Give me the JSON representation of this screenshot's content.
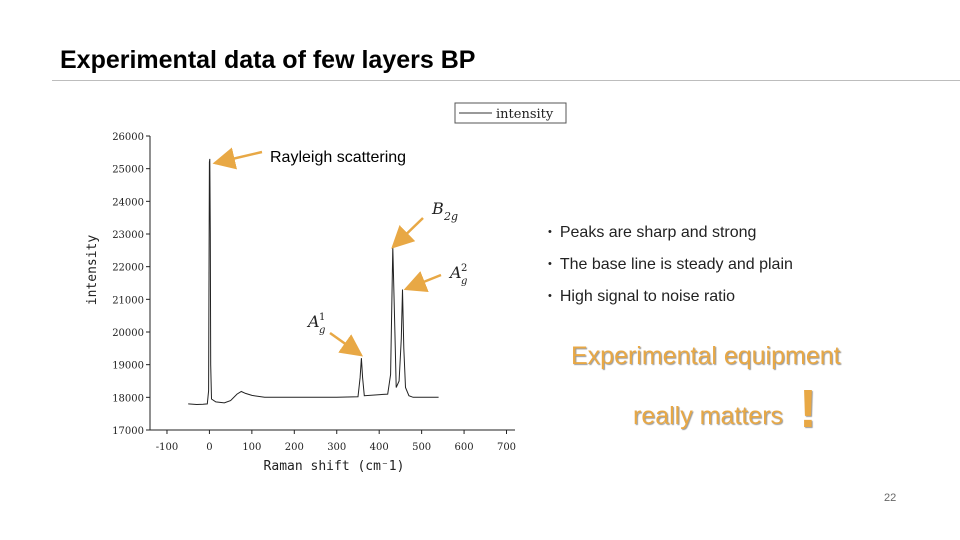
{
  "slide": {
    "title": "Experimental data of few layers BP",
    "bullets": [
      "Peaks are sharp and strong",
      "The base line is steady and plain",
      "High signal to noise ratio"
    ],
    "highlight_line1": "Experimental equipment",
    "highlight_line2": "really matters",
    "highlight_mark": "!",
    "page_number": "22",
    "accent_color": "#e8a845",
    "arrow_color": "#e8a845"
  },
  "chart_data": {
    "type": "line",
    "legend": "intensity",
    "xlabel": "Raman shift (cm⁻1)",
    "ylabel": "intensity",
    "xlim": [
      -140,
      720
    ],
    "ylim": [
      17000,
      26000
    ],
    "x_ticks": [
      -100,
      0,
      100,
      200,
      300,
      400,
      500,
      600,
      700
    ],
    "y_ticks": [
      17000,
      18000,
      19000,
      20000,
      21000,
      22000,
      23000,
      24000,
      25000,
      26000
    ],
    "series": [
      {
        "name": "intensity",
        "points": [
          [
            -50,
            17800
          ],
          [
            -30,
            17780
          ],
          [
            -15,
            17790
          ],
          [
            -5,
            17800
          ],
          [
            -2,
            18200
          ],
          [
            0,
            25200
          ],
          [
            1,
            25300
          ],
          [
            2,
            23000
          ],
          [
            3,
            19000
          ],
          [
            5,
            17950
          ],
          [
            15,
            17860
          ],
          [
            35,
            17830
          ],
          [
            50,
            17900
          ],
          [
            65,
            18100
          ],
          [
            75,
            18180
          ],
          [
            85,
            18120
          ],
          [
            100,
            18060
          ],
          [
            130,
            18000
          ],
          [
            200,
            18000
          ],
          [
            300,
            18000
          ],
          [
            350,
            18020
          ],
          [
            355,
            18600
          ],
          [
            358,
            19200
          ],
          [
            361,
            18600
          ],
          [
            365,
            18050
          ],
          [
            420,
            18100
          ],
          [
            427,
            18700
          ],
          [
            432,
            22600
          ],
          [
            437,
            20000
          ],
          [
            440,
            18300
          ],
          [
            447,
            18500
          ],
          [
            452,
            19800
          ],
          [
            455,
            21300
          ],
          [
            458,
            19500
          ],
          [
            462,
            18300
          ],
          [
            470,
            18050
          ],
          [
            480,
            18000
          ],
          [
            540,
            18000
          ]
        ]
      }
    ],
    "annotations": [
      {
        "label": "Rayleigh scattering",
        "x": 0,
        "y": 25200
      },
      {
        "label": "B2g",
        "x": 440,
        "y": 22600
      },
      {
        "label": "A2g",
        "x": 470,
        "y": 21300
      },
      {
        "label": "A1g",
        "x": 360,
        "y": 19200
      }
    ]
  }
}
